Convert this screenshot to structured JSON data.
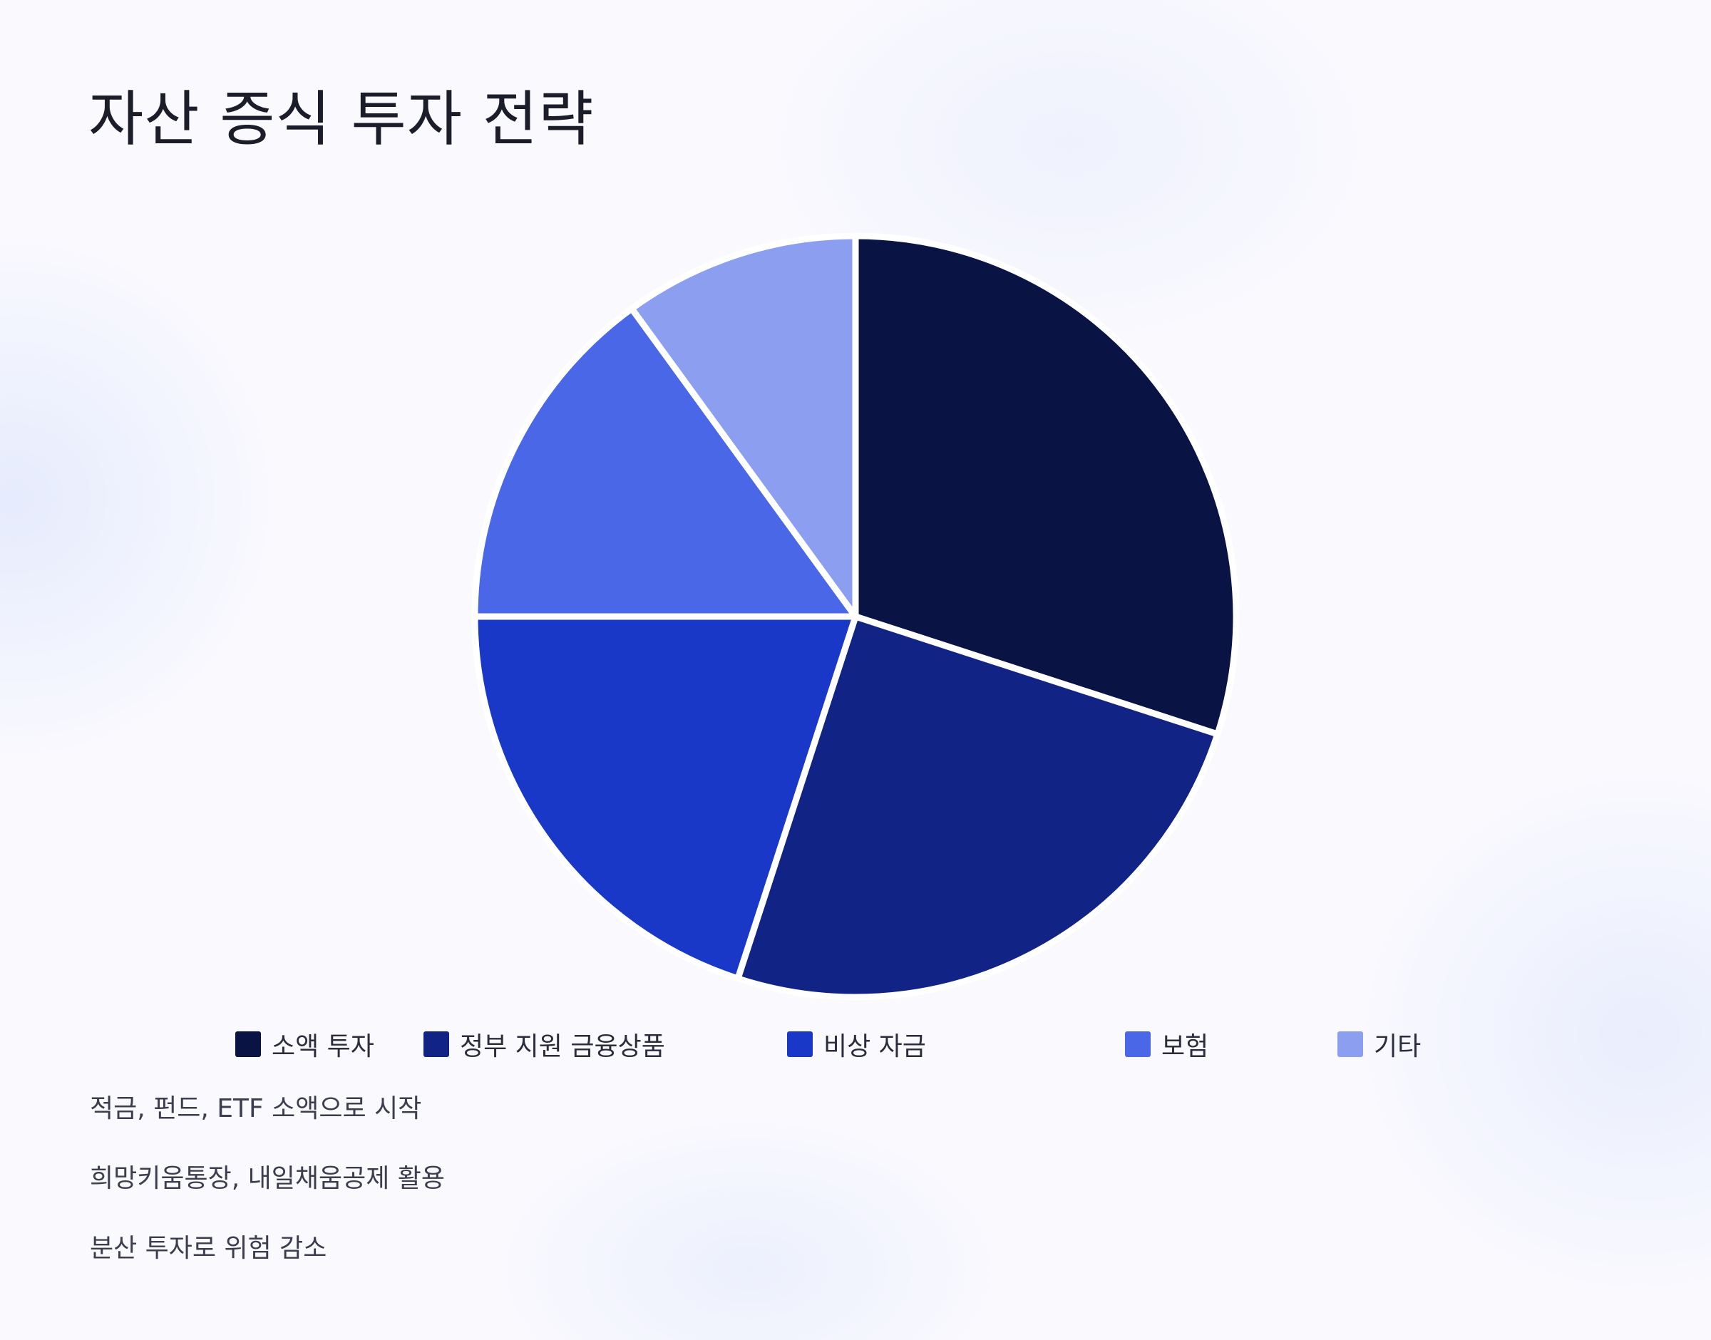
{
  "chart_data": {
    "type": "pie",
    "title": "자산 증식 투자 전략",
    "categories": [
      "소액 투자",
      "정부 지원 금융상품",
      "비상 자금",
      "보험",
      "기타"
    ],
    "values": [
      30,
      25,
      20,
      15,
      10
    ],
    "colors": [
      "#0a1444",
      "#112486",
      "#1a38c8",
      "#4a67e8",
      "#8c9ef0"
    ],
    "legend_position": "bottom",
    "start_angle_deg": 0,
    "direction": "clockwise"
  },
  "notes": [
    "적금, 펀드, ETF 소액으로 시작",
    "희망키움통장, 내일채움공제 활용",
    "분산 투자로 위험 감소"
  ]
}
